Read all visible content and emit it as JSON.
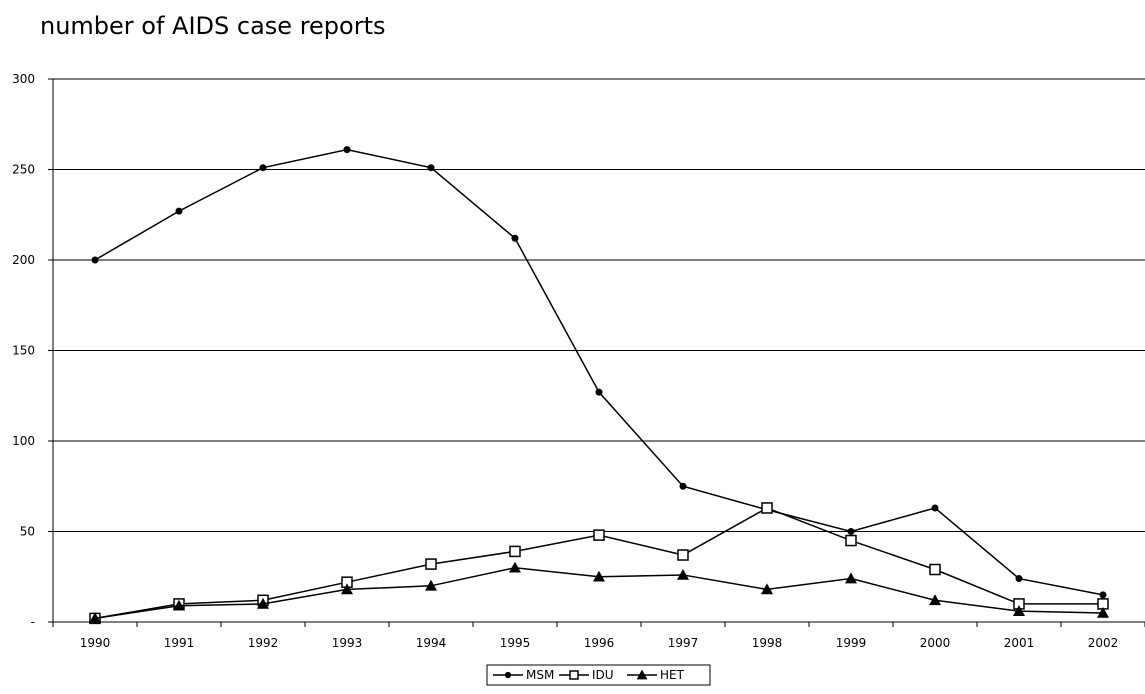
{
  "chart_data": {
    "type": "line",
    "title": "number of AIDS case reports",
    "xlabel": "",
    "ylabel": "",
    "ylim": [
      0,
      300
    ],
    "yticks": [
      0,
      50,
      100,
      150,
      200,
      250,
      300
    ],
    "ytick_labels": [
      "-",
      "50",
      "100",
      "150",
      "200",
      "250",
      "300"
    ],
    "categories": [
      "1990",
      "1991",
      "1992",
      "1993",
      "1994",
      "1995",
      "1996",
      "1997",
      "1998",
      "1999",
      "2000",
      "2001",
      "2002"
    ],
    "grid": true,
    "legend_position": "bottom",
    "series": [
      {
        "name": "MSM",
        "marker": "dot",
        "color": "#000000",
        "values": [
          200,
          227,
          251,
          261,
          251,
          212,
          127,
          75,
          62,
          50,
          63,
          24,
          15
        ]
      },
      {
        "name": "IDU",
        "marker": "square",
        "color": "#000000",
        "values": [
          2,
          10,
          12,
          22,
          32,
          39,
          48,
          37,
          63,
          45,
          29,
          10,
          10
        ]
      },
      {
        "name": "HET",
        "marker": "triangle",
        "color": "#000000",
        "values": [
          2,
          9,
          10,
          18,
          20,
          30,
          25,
          26,
          18,
          24,
          12,
          6,
          5
        ]
      }
    ]
  }
}
